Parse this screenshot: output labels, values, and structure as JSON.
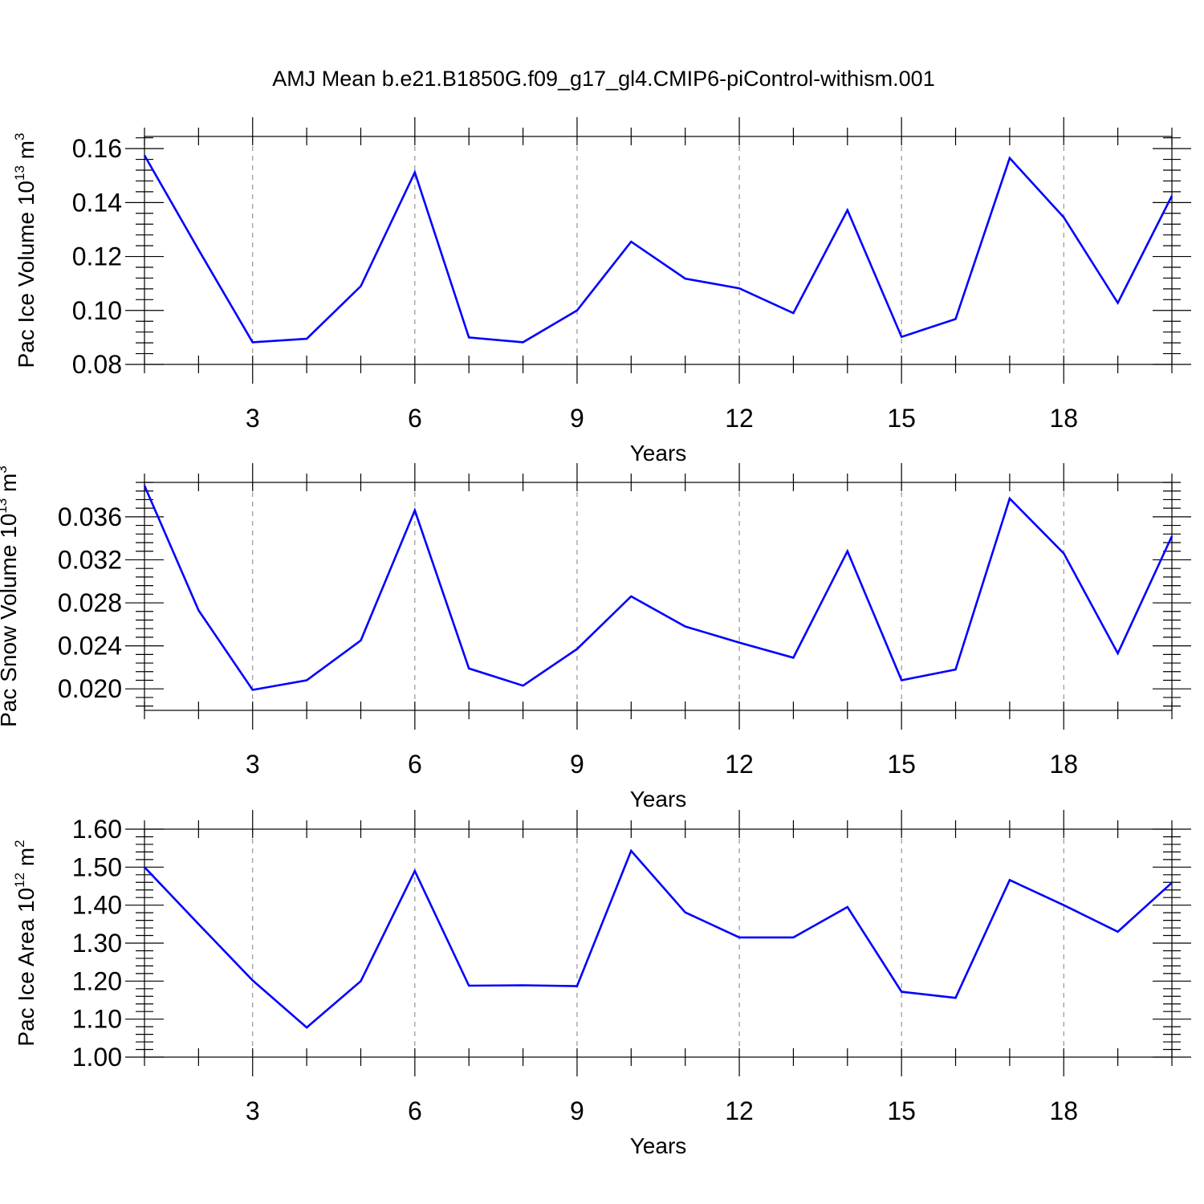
{
  "figure": {
    "title": "AMJ Mean b.e21.B1850G.f09_g17_gl4.CMIP6-piControl-withism.001"
  },
  "colors": {
    "line": "#0000ff",
    "axis": "#000000",
    "grid": "#808080"
  },
  "chart_data": [
    {
      "type": "line",
      "ylabel": {
        "main": "Pac Ice Volume 10",
        "sup": "13",
        "unit": " m",
        "unit_sup": "3"
      },
      "xlabel": "Years",
      "x": [
        1,
        2,
        3,
        4,
        5,
        6,
        7,
        8,
        9,
        10,
        11,
        12,
        13,
        14,
        15,
        16,
        17,
        18,
        19,
        20
      ],
      "values": [
        0.1575,
        0.1225,
        0.0882,
        0.0895,
        0.109,
        0.1512,
        0.09,
        0.0882,
        0.1,
        0.1255,
        0.1118,
        0.1082,
        0.099,
        0.1372,
        0.0902,
        0.0968,
        0.1565,
        0.1345,
        0.1028,
        0.1425
      ],
      "xlim": [
        1,
        20
      ],
      "ylim": [
        0.08,
        0.16
      ],
      "yticks": [
        0.08,
        0.1,
        0.12,
        0.14,
        0.16
      ],
      "ytick_labels": [
        "0.08",
        "0.10",
        "0.12",
        "0.14",
        "0.16"
      ],
      "xticks": [
        3,
        6,
        9,
        12,
        15,
        18
      ],
      "xtick_labels": [
        "3",
        "6",
        "9",
        "12",
        "15",
        "18"
      ],
      "ytop": 0.1645,
      "ydecimals": 2,
      "grid": "vertical dashed at major x ticks"
    },
    {
      "type": "line",
      "ylabel": {
        "main": "Pac Snow Volume 10",
        "sup": "13",
        "unit": " m",
        "unit_sup": "3"
      },
      "xlabel": "Years",
      "x": [
        1,
        2,
        3,
        4,
        5,
        6,
        7,
        8,
        9,
        10,
        11,
        12,
        13,
        14,
        15,
        16,
        17,
        18,
        19,
        20
      ],
      "values": [
        0.0389,
        0.0273,
        0.0199,
        0.0208,
        0.0245,
        0.0366,
        0.0219,
        0.0203,
        0.0237,
        0.0286,
        0.0258,
        0.0243,
        0.0229,
        0.0328,
        0.0208,
        0.0218,
        0.0377,
        0.0326,
        0.0233,
        0.0342
      ],
      "xlim": [
        1,
        20
      ],
      "ylim": [
        0.018,
        0.0392
      ],
      "yticks": [
        0.02,
        0.024,
        0.028,
        0.032,
        0.036
      ],
      "ytick_labels": [
        "0.020",
        "0.024",
        "0.028",
        "0.032",
        "0.036"
      ],
      "xticks": [
        3,
        6,
        9,
        12,
        15,
        18
      ],
      "xtick_labels": [
        "3",
        "6",
        "9",
        "12",
        "15",
        "18"
      ],
      "ydecimals": 3,
      "grid": "vertical dashed at major x ticks"
    },
    {
      "type": "line",
      "ylabel": {
        "main": "Pac Ice Area 10",
        "sup": "12",
        "unit": " m",
        "unit_sup": "2"
      },
      "xlabel": "Years",
      "x": [
        1,
        2,
        3,
        4,
        5,
        6,
        7,
        8,
        9,
        10,
        11,
        12,
        13,
        14,
        15,
        16,
        17,
        18,
        19,
        20
      ],
      "values": [
        1.5,
        1.35,
        1.202,
        1.078,
        1.2,
        1.49,
        1.188,
        1.189,
        1.187,
        1.543,
        1.381,
        1.315,
        1.315,
        1.395,
        1.172,
        1.156,
        1.466,
        1.4,
        1.33,
        1.459
      ],
      "xlim": [
        1,
        20
      ],
      "ylim": [
        1.0,
        1.6
      ],
      "yticks": [
        1.0,
        1.1,
        1.2,
        1.3,
        1.4,
        1.5,
        1.6
      ],
      "ytick_labels": [
        "1.00",
        "1.10",
        "1.20",
        "1.30",
        "1.40",
        "1.50",
        "1.60"
      ],
      "xticks": [
        3,
        6,
        9,
        12,
        15,
        18
      ],
      "xtick_labels": [
        "3",
        "6",
        "9",
        "12",
        "15",
        "18"
      ],
      "ydecimals": 2,
      "grid": "vertical dashed at major x ticks"
    }
  ]
}
